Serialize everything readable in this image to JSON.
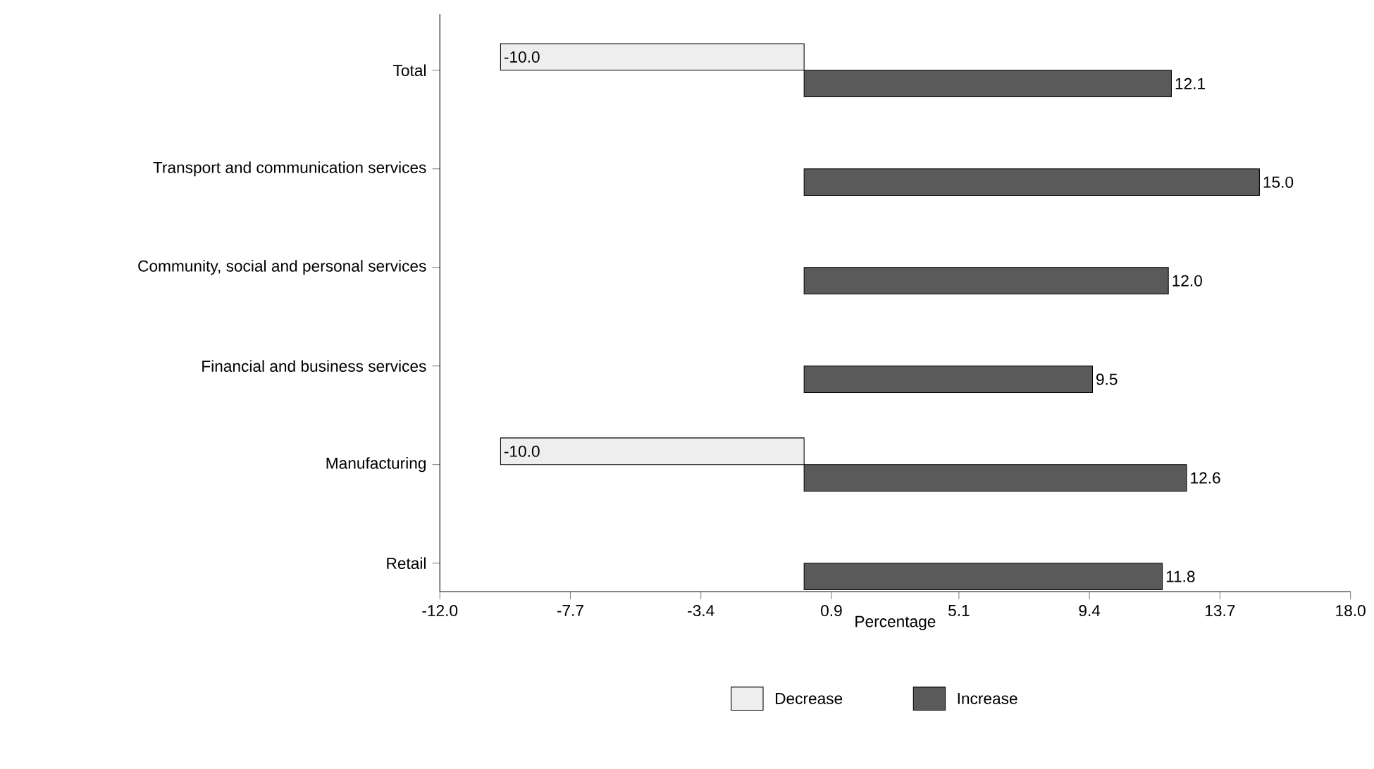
{
  "chart_data": {
    "type": "bar",
    "orientation": "horizontal",
    "xlabel": "Percentage",
    "categories": [
      "Total",
      "Transport and communication services",
      "Community, social and personal services",
      "Financial and business services",
      "Manufacturing",
      "Retail"
    ],
    "series": [
      {
        "name": "Decrease",
        "color": "#eeeeee",
        "values": [
          -10.0,
          null,
          null,
          null,
          -10.0,
          null
        ],
        "value_labels": [
          "-10.0",
          null,
          null,
          null,
          "-10.0",
          null
        ]
      },
      {
        "name": "Increase",
        "color": "#5a5a5a",
        "values": [
          12.1,
          15.0,
          12.0,
          9.5,
          12.6,
          11.8
        ],
        "value_labels": [
          "12.1",
          "15.0",
          "12.0",
          "9.5",
          "12.6",
          "11.8"
        ]
      }
    ],
    "xlim": [
      -12,
      18
    ],
    "xticks": [
      {
        "value": -12,
        "label": "-12.0"
      },
      -7.7,
      -3.4,
      0.9,
      5.1,
      9.4,
      13.7,
      {
        "value": 18,
        "label": "18.0"
      }
    ],
    "grid": false,
    "legend": "bottom"
  }
}
